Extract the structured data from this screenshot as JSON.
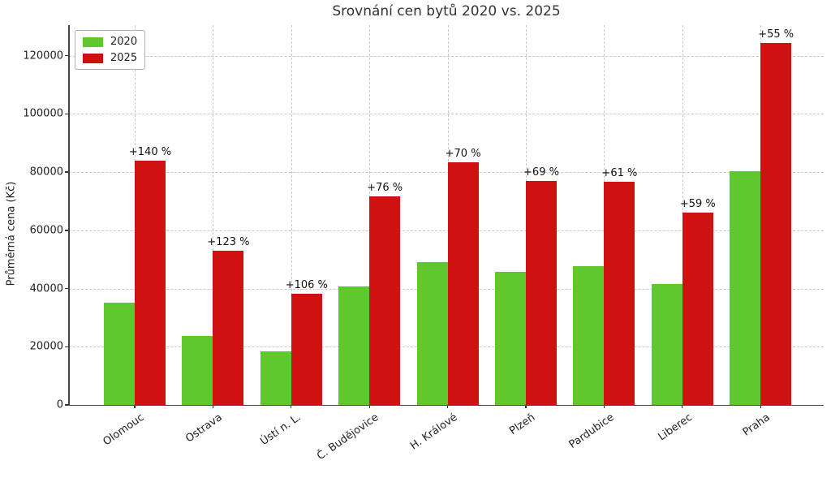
{
  "chart_data": {
    "type": "bar",
    "title": "Srovnání cen bytů 2020 vs. 2025",
    "xlabel": "",
    "ylabel": "Průměrná cena (Kč)",
    "categories": [
      "Olomouc",
      "Ostrava",
      "Ústí n. L.",
      "Č. Budějovice",
      "H. Králové",
      "Plzeň",
      "Pardubice",
      "Liberec",
      "Praha"
    ],
    "series": [
      {
        "name": "2020",
        "color": "#5ec82e",
        "values": [
          35000,
          23800,
          18500,
          40700,
          49000,
          45600,
          47600,
          41500,
          80300
        ]
      },
      {
        "name": "2025",
        "color": "#cf1110",
        "values": [
          84000,
          53000,
          38100,
          71600,
          83300,
          77100,
          76700,
          66000,
          124500
        ]
      }
    ],
    "annotations": [
      "+140 %",
      "+123 %",
      "+106 %",
      "+76 %",
      "+70 %",
      "+69 %",
      "+61 %",
      "+59 %",
      "+55 %"
    ],
    "yticks": [
      0,
      20000,
      40000,
      60000,
      80000,
      100000,
      120000
    ],
    "ylim": [
      0,
      130500
    ],
    "grid": true,
    "grid_style": "dashed",
    "legend_position": "upper left",
    "title_color": "#333333",
    "text_color": "#222222"
  }
}
